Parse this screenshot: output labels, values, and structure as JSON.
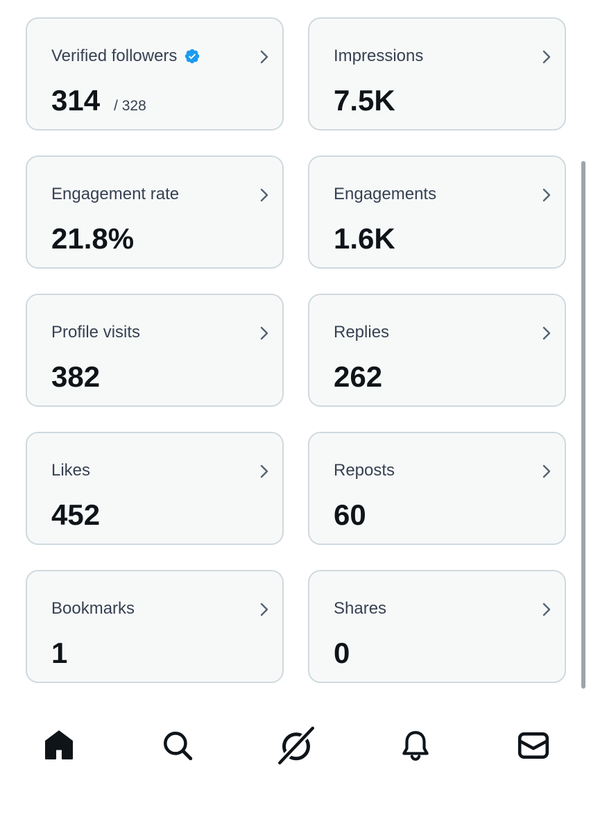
{
  "stats": [
    {
      "label": "Verified followers",
      "value": "314",
      "sub": "/ 328",
      "verified": true
    },
    {
      "label": "Impressions",
      "value": "7.5K"
    },
    {
      "label": "Engagement rate",
      "value": "21.8%"
    },
    {
      "label": "Engagements",
      "value": "1.6K"
    },
    {
      "label": "Profile visits",
      "value": "382"
    },
    {
      "label": "Replies",
      "value": "262"
    },
    {
      "label": "Likes",
      "value": "452"
    },
    {
      "label": "Reposts",
      "value": "60"
    },
    {
      "label": "Bookmarks",
      "value": "1"
    },
    {
      "label": "Shares",
      "value": "0"
    }
  ],
  "colors": {
    "card_bg": "#f7f9f9",
    "card_border": "#cfd9de",
    "verified_blue": "#1d9bf0",
    "text_primary": "#0f1419",
    "text_secondary": "#374151"
  },
  "nav": {
    "items": [
      {
        "icon": "home-icon",
        "active": true
      },
      {
        "icon": "search-icon"
      },
      {
        "icon": "grok-icon"
      },
      {
        "icon": "bell-icon"
      },
      {
        "icon": "mail-icon"
      }
    ]
  }
}
